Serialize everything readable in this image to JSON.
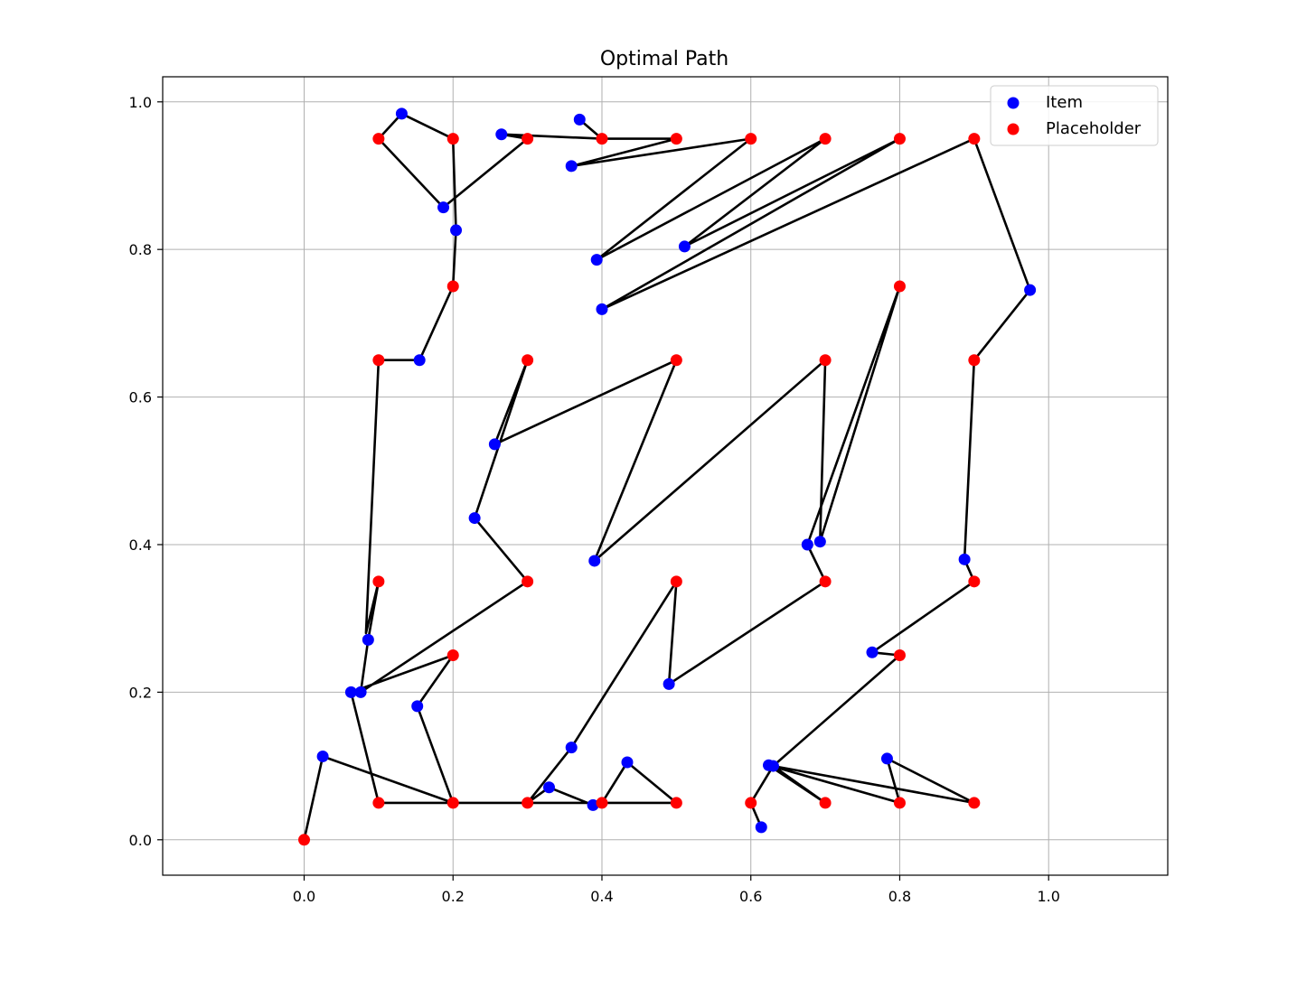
{
  "chart_data": {
    "type": "scatter",
    "title": "Optimal Path",
    "xlabel": "",
    "ylabel": "",
    "xlim": [
      -0.19,
      1.16
    ],
    "ylim": [
      -0.048,
      1.034
    ],
    "x_ticks": [
      "0.0",
      "0.2",
      "0.4",
      "0.6",
      "0.8",
      "1.0"
    ],
    "y_ticks": [
      "0.0",
      "0.2",
      "0.4",
      "0.6",
      "0.8",
      "1.0"
    ],
    "grid": true,
    "legend_position": "top-right",
    "series": [
      {
        "name": "Item",
        "color": "#0000ff",
        "points": [
          [
            0.131,
            0.984
          ],
          [
            0.187,
            0.857
          ],
          [
            0.204,
            0.826
          ],
          [
            0.265,
            0.956
          ],
          [
            0.37,
            0.976
          ],
          [
            0.359,
            0.913
          ],
          [
            0.393,
            0.786
          ],
          [
            0.511,
            0.804
          ],
          [
            0.4,
            0.719
          ],
          [
            0.975,
            0.745
          ],
          [
            0.155,
            0.65
          ],
          [
            0.256,
            0.536
          ],
          [
            0.229,
            0.436
          ],
          [
            0.39,
            0.378
          ],
          [
            0.676,
            0.4
          ],
          [
            0.693,
            0.404
          ],
          [
            0.887,
            0.38
          ],
          [
            0.086,
            0.271
          ],
          [
            0.063,
            0.2
          ],
          [
            0.076,
            0.2
          ],
          [
            0.152,
            0.181
          ],
          [
            0.49,
            0.211
          ],
          [
            0.763,
            0.254
          ],
          [
            0.025,
            0.113
          ],
          [
            0.359,
            0.125
          ],
          [
            0.329,
            0.071
          ],
          [
            0.388,
            0.047
          ],
          [
            0.434,
            0.105
          ],
          [
            0.624,
            0.101
          ],
          [
            0.63,
            0.1
          ],
          [
            0.783,
            0.11
          ],
          [
            0.614,
            0.017
          ]
        ]
      },
      {
        "name": "Placeholder",
        "color": "#ff0000",
        "points": [
          [
            0.1,
            0.95
          ],
          [
            0.2,
            0.95
          ],
          [
            0.3,
            0.95
          ],
          [
            0.4,
            0.95
          ],
          [
            0.5,
            0.95
          ],
          [
            0.6,
            0.95
          ],
          [
            0.7,
            0.95
          ],
          [
            0.8,
            0.95
          ],
          [
            0.9,
            0.95
          ],
          [
            0.2,
            0.75
          ],
          [
            0.8,
            0.75
          ],
          [
            0.1,
            0.65
          ],
          [
            0.3,
            0.65
          ],
          [
            0.5,
            0.65
          ],
          [
            0.7,
            0.65
          ],
          [
            0.9,
            0.65
          ],
          [
            0.1,
            0.35
          ],
          [
            0.3,
            0.35
          ],
          [
            0.5,
            0.35
          ],
          [
            0.7,
            0.35
          ],
          [
            0.9,
            0.35
          ],
          [
            0.2,
            0.25
          ],
          [
            0.8,
            0.25
          ],
          [
            0.0,
            0.0
          ],
          [
            0.1,
            0.05
          ],
          [
            0.2,
            0.05
          ],
          [
            0.3,
            0.05
          ],
          [
            0.4,
            0.05
          ],
          [
            0.5,
            0.05
          ],
          [
            0.6,
            0.05
          ],
          [
            0.7,
            0.05
          ],
          [
            0.8,
            0.05
          ],
          [
            0.9,
            0.05
          ]
        ]
      }
    ],
    "path_color": "#000000",
    "path": [
      [
        0.0,
        0.0
      ],
      [
        0.025,
        0.113
      ],
      [
        0.2,
        0.05
      ],
      [
        0.152,
        0.181
      ],
      [
        0.2,
        0.25
      ],
      [
        0.063,
        0.2
      ],
      [
        0.1,
        0.05
      ],
      [
        0.25,
        0.05
      ],
      [
        0.5,
        0.05
      ],
      [
        0.434,
        0.105
      ],
      [
        0.4,
        0.05
      ],
      [
        0.388,
        0.047
      ],
      [
        0.329,
        0.071
      ],
      [
        0.3,
        0.05
      ],
      [
        0.359,
        0.125
      ],
      [
        0.5,
        0.35
      ],
      [
        0.49,
        0.211
      ],
      [
        0.7,
        0.35
      ],
      [
        0.676,
        0.4
      ],
      [
        0.8,
        0.75
      ],
      [
        0.693,
        0.404
      ],
      [
        0.7,
        0.65
      ],
      [
        0.39,
        0.378
      ],
      [
        0.5,
        0.65
      ],
      [
        0.256,
        0.536
      ],
      [
        0.3,
        0.65
      ],
      [
        0.229,
        0.436
      ],
      [
        0.3,
        0.35
      ],
      [
        0.076,
        0.2
      ],
      [
        0.086,
        0.271
      ],
      [
        0.1,
        0.35
      ],
      [
        0.083,
        0.28
      ],
      [
        0.1,
        0.65
      ],
      [
        0.155,
        0.65
      ],
      [
        0.2,
        0.75
      ],
      [
        0.204,
        0.826
      ],
      [
        0.2,
        0.95
      ],
      [
        0.131,
        0.984
      ],
      [
        0.1,
        0.95
      ],
      [
        0.187,
        0.857
      ],
      [
        0.3,
        0.95
      ],
      [
        0.265,
        0.956
      ],
      [
        0.4,
        0.95
      ],
      [
        0.37,
        0.976
      ],
      [
        0.4,
        0.95
      ],
      [
        0.5,
        0.95
      ],
      [
        0.359,
        0.913
      ],
      [
        0.6,
        0.95
      ],
      [
        0.393,
        0.786
      ],
      [
        0.7,
        0.95
      ],
      [
        0.511,
        0.804
      ],
      [
        0.8,
        0.95
      ],
      [
        0.4,
        0.719
      ],
      [
        0.9,
        0.95
      ],
      [
        0.975,
        0.745
      ],
      [
        0.9,
        0.65
      ],
      [
        0.887,
        0.38
      ],
      [
        0.9,
        0.35
      ],
      [
        0.763,
        0.254
      ],
      [
        0.8,
        0.25
      ],
      [
        0.63,
        0.1
      ],
      [
        0.7,
        0.05
      ],
      [
        0.624,
        0.101
      ],
      [
        0.8,
        0.05
      ],
      [
        0.783,
        0.11
      ],
      [
        0.9,
        0.05
      ],
      [
        0.63,
        0.1
      ],
      [
        0.6,
        0.05
      ],
      [
        0.614,
        0.017
      ]
    ]
  }
}
